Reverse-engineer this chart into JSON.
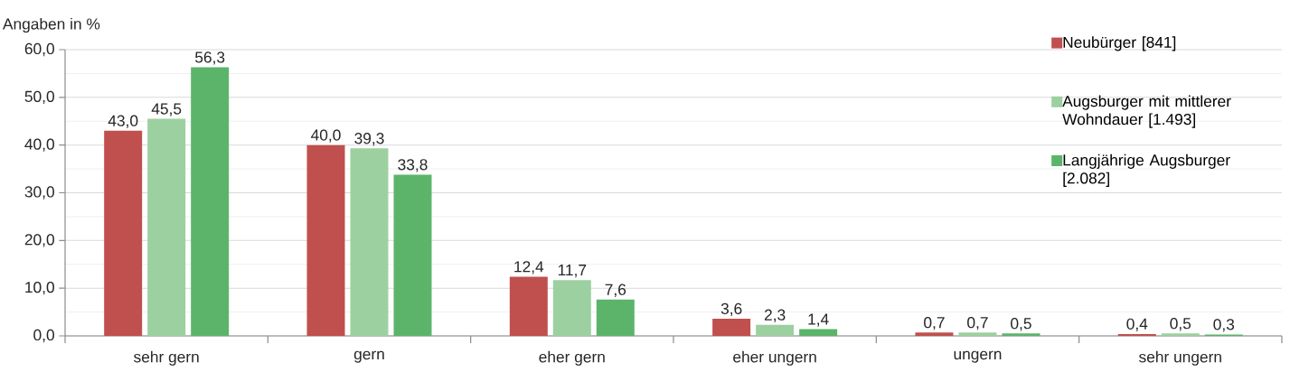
{
  "chart_data": {
    "type": "bar",
    "ylabel": "Angaben in %",
    "categories": [
      "sehr gern",
      "gern",
      "eher gern",
      "eher ungern",
      "ungern",
      "sehr ungern"
    ],
    "series": [
      {
        "name": "Neubürger [841]",
        "color": "#c0504d",
        "values": [
          43.0,
          40.0,
          12.4,
          3.6,
          0.7,
          0.4
        ],
        "value_labels": [
          "43,0",
          "40,0",
          "12,4",
          "3,6",
          "0,7",
          "0,4"
        ]
      },
      {
        "name": "Augsburger mit mittlerer Wohndauer [1.493]",
        "color": "#9dd0a0",
        "values": [
          45.5,
          39.3,
          11.7,
          2.3,
          0.7,
          0.5
        ],
        "value_labels": [
          "45,5",
          "39,3",
          "11,7",
          "2,3",
          "0,7",
          "0,5"
        ]
      },
      {
        "name": "Langjährige Augsburger [2.082]",
        "color": "#5cb46b",
        "values": [
          56.3,
          33.8,
          7.6,
          1.4,
          0.5,
          0.3
        ],
        "value_labels": [
          "56,3",
          "33,8",
          "7,6",
          "1,4",
          "0,5",
          "0,3"
        ]
      }
    ],
    "ylim": [
      0,
      60
    ],
    "yticks": [
      {
        "value": 0,
        "label": "0,0"
      },
      {
        "value": 5,
        "label": null
      },
      {
        "value": 10,
        "label": "10,0"
      },
      {
        "value": 15,
        "label": null
      },
      {
        "value": 20,
        "label": "20,0"
      },
      {
        "value": 25,
        "label": null
      },
      {
        "value": 30,
        "label": "30,0"
      },
      {
        "value": 35,
        "label": null
      },
      {
        "value": 40,
        "label": "40,0"
      },
      {
        "value": 45,
        "label": null
      },
      {
        "value": 50,
        "label": "50,0"
      },
      {
        "value": 55,
        "label": null
      },
      {
        "value": 60,
        "label": "60,0"
      }
    ],
    "grid": "y",
    "legend": "top right"
  }
}
